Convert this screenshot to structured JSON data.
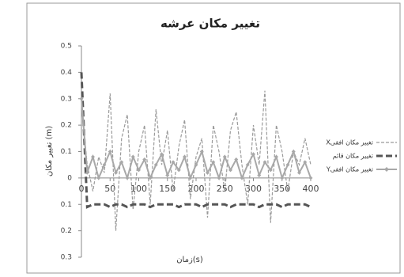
{
  "chart_data": {
    "type": "line",
    "title": "تغییر مکان عرشه",
    "y_label": "تغییر مکان (m)",
    "x_label": "زمان(s)",
    "x": [
      0,
      10,
      20,
      30,
      40,
      50,
      60,
      70,
      80,
      90,
      100,
      110,
      120,
      130,
      140,
      150,
      160,
      170,
      180,
      190,
      200,
      210,
      220,
      230,
      240,
      250,
      260,
      270,
      280,
      290,
      300,
      310,
      320,
      330,
      340,
      350,
      360,
      370,
      380,
      390,
      400
    ],
    "series": [
      {
        "name": "Xتغییر مکان افقی",
        "color": "#9a9a9a",
        "style": "dashed",
        "width": 1.2,
        "values": [
          0.28,
          0.05,
          -0.05,
          0.08,
          0.02,
          0.32,
          -0.2,
          0.15,
          0.24,
          -0.12,
          0.1,
          0.2,
          -0.1,
          0.26,
          0.05,
          0.18,
          -0.05,
          0.12,
          0.22,
          -0.08,
          0.08,
          0.15,
          -0.15,
          0.2,
          0.1,
          -0.05,
          0.18,
          0.25,
          0.05,
          -0.1,
          0.2,
          0.05,
          0.33,
          -0.17,
          0.2,
          0.1,
          -0.05,
          0.1,
          0.05,
          0.15,
          0.05
        ]
      },
      {
        "name": "تغییر مکان قائم",
        "color": "#555555",
        "style": "dashed",
        "width": 3,
        "values": [
          0.4,
          -0.11,
          -0.1,
          -0.1,
          -0.1,
          -0.11,
          -0.1,
          -0.1,
          -0.11,
          -0.1,
          -0.1,
          -0.1,
          -0.11,
          -0.1,
          -0.1,
          -0.1,
          -0.1,
          -0.11,
          -0.1,
          -0.1,
          -0.1,
          -0.11,
          -0.1,
          -0.1,
          -0.1,
          -0.1,
          -0.11,
          -0.1,
          -0.1,
          -0.1,
          -0.1,
          -0.11,
          -0.1,
          -0.1,
          -0.1,
          -0.11,
          -0.1,
          -0.1,
          -0.1,
          -0.1,
          -0.11
        ]
      },
      {
        "name": "Yتغییر مکان افقی",
        "color": "#a8a8a8",
        "style": "solid",
        "width": 2,
        "marker": "diamond",
        "values": [
          0.3,
          0.02,
          0.08,
          0.0,
          0.05,
          0.1,
          0.02,
          0.06,
          0.0,
          0.08,
          0.03,
          0.07,
          0.0,
          0.05,
          0.09,
          0.01,
          0.06,
          0.03,
          0.08,
          0.0,
          0.05,
          0.1,
          0.02,
          0.06,
          0.0,
          0.08,
          0.03,
          0.07,
          0.0,
          0.05,
          0.09,
          0.01,
          0.06,
          0.03,
          0.08,
          0.0,
          0.05,
          0.1,
          0.02,
          0.06,
          0.0
        ]
      }
    ],
    "xlim": [
      0,
      400
    ],
    "xticks": [
      0,
      50,
      100,
      150,
      200,
      250,
      300,
      350,
      400
    ],
    "ylim": [
      -0.3,
      0.5
    ],
    "yticks": [
      {
        "value": -0.3,
        "label": "0.3"
      },
      {
        "value": -0.2,
        "label": "0.2"
      },
      {
        "value": -0.1,
        "label": "0.1"
      },
      0,
      0.1,
      0.2,
      0.3,
      0.4,
      0.5
    ],
    "grid": false,
    "legend": "right"
  }
}
